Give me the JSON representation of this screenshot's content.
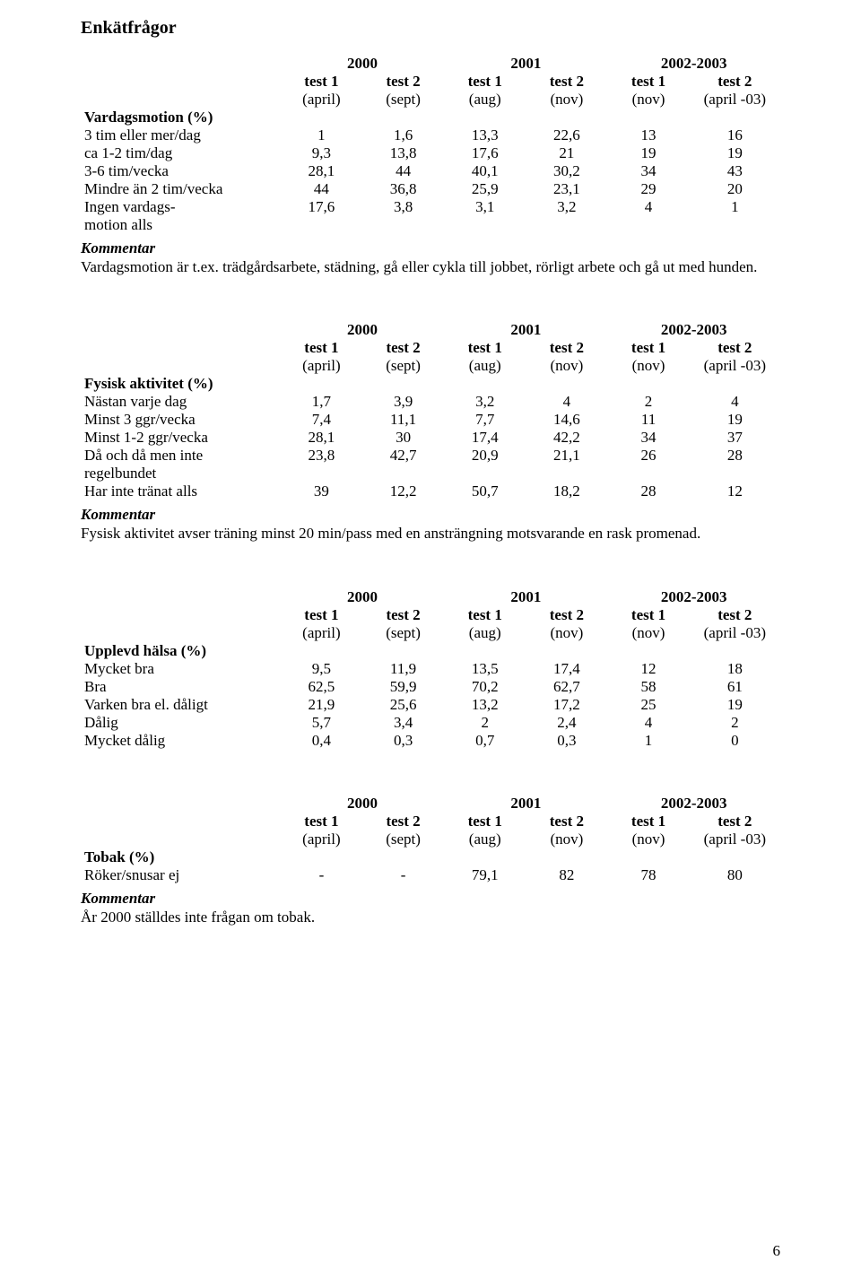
{
  "page_title": "Enkätfrågor",
  "page_number": "6",
  "years": [
    "2000",
    "2001",
    "2002-2003"
  ],
  "test_labels": [
    "test 1",
    "test 2",
    "test 1",
    "test 2",
    "test 1",
    "test 2"
  ],
  "month_labels": [
    "(april)",
    "(sept)",
    "(aug)",
    "(nov)",
    "(nov)",
    "(april -03)"
  ],
  "kommentar_label": "Kommentar",
  "t1": {
    "section": "Vardagsmotion (%)",
    "rows": [
      {
        "label": "3 tim eller mer/dag",
        "v": [
          "1",
          "1,6",
          "13,3",
          "22,6",
          "13",
          "16"
        ]
      },
      {
        "label": "ca 1-2 tim/dag",
        "v": [
          "9,3",
          "13,8",
          "17,6",
          "21",
          "19",
          "19"
        ]
      },
      {
        "label": "3-6 tim/vecka",
        "v": [
          "28,1",
          "44",
          "40,1",
          "30,2",
          "34",
          "43"
        ]
      },
      {
        "label": "Mindre än 2 tim/vecka",
        "v": [
          "44",
          "36,8",
          "25,9",
          "23,1",
          "29",
          "20"
        ]
      },
      {
        "label": "Ingen vardags-",
        "v": [
          "17,6",
          "3,8",
          "3,1",
          "3,2",
          "4",
          "1"
        ]
      },
      {
        "label": "motion alls",
        "v": [
          "",
          "",
          "",
          "",
          "",
          ""
        ]
      }
    ],
    "comment": "Vardagsmotion är t.ex. trädgårdsarbete, städning, gå eller cykla till jobbet, rörligt arbete och gå ut med hunden."
  },
  "t2": {
    "section": "Fysisk aktivitet (%)",
    "rows": [
      {
        "label": "Nästan varje dag",
        "v": [
          "1,7",
          "3,9",
          "3,2",
          "4",
          "2",
          "4"
        ]
      },
      {
        "label": "Minst 3 ggr/vecka",
        "v": [
          "7,4",
          "11,1",
          "7,7",
          "14,6",
          "11",
          "19"
        ]
      },
      {
        "label": "Minst 1-2 ggr/vecka",
        "v": [
          "28,1",
          "30",
          "17,4",
          "42,2",
          "34",
          "37"
        ]
      },
      {
        "label": "Då och då men inte",
        "v": [
          "23,8",
          "42,7",
          "20,9",
          "21,1",
          "26",
          "28"
        ]
      },
      {
        "label": "regelbundet",
        "v": [
          "",
          "",
          "",
          "",
          "",
          ""
        ]
      },
      {
        "label": "Har inte tränat alls",
        "v": [
          "39",
          "12,2",
          "50,7",
          "18,2",
          "28",
          "12"
        ]
      }
    ],
    "comment": "Fysisk aktivitet avser träning minst 20 min/pass med en ansträngning motsvarande en rask promenad."
  },
  "t3": {
    "section": "Upplevd hälsa (%)",
    "rows": [
      {
        "label": "Mycket bra",
        "v": [
          "9,5",
          "11,9",
          "13,5",
          "17,4",
          "12",
          "18"
        ]
      },
      {
        "label": "Bra",
        "v": [
          "62,5",
          "59,9",
          "70,2",
          "62,7",
          "58",
          "61"
        ]
      },
      {
        "label": "Varken bra el. dåligt",
        "v": [
          "21,9",
          "25,6",
          "13,2",
          "17,2",
          "25",
          "19"
        ]
      },
      {
        "label": "Dålig",
        "v": [
          "5,7",
          "3,4",
          "2",
          "2,4",
          "4",
          "2"
        ]
      },
      {
        "label": "Mycket dålig",
        "v": [
          "0,4",
          "0,3",
          "0,7",
          "0,3",
          "1",
          "0"
        ]
      }
    ]
  },
  "t4": {
    "section": "Tobak (%)",
    "rows": [
      {
        "label": "Röker/snusar ej",
        "v": [
          "-",
          "-",
          "79,1",
          "82",
          "78",
          "80"
        ]
      }
    ],
    "comment": "År 2000 ställdes inte frågan om tobak."
  }
}
